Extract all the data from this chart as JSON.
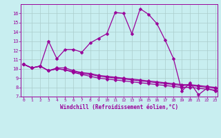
{
  "xlabel": "Windchill (Refroidissement éolien,°C)",
  "hours": [
    0,
    1,
    2,
    3,
    4,
    5,
    6,
    7,
    8,
    9,
    10,
    11,
    12,
    13,
    14,
    15,
    16,
    17,
    18,
    19,
    20,
    21,
    22,
    23
  ],
  "series1": [
    10.5,
    10.1,
    10.3,
    13.0,
    11.1,
    12.1,
    12.1,
    11.8,
    12.8,
    13.3,
    13.8,
    16.1,
    16.0,
    13.8,
    16.5,
    15.9,
    14.9,
    13.1,
    11.1,
    7.6,
    8.5,
    7.2,
    7.9,
    7.6
  ],
  "series2": [
    10.5,
    10.1,
    10.3,
    9.8,
    10.1,
    10.1,
    9.8,
    9.6,
    9.5,
    9.3,
    9.2,
    9.1,
    9.0,
    8.9,
    8.8,
    8.7,
    8.6,
    8.5,
    8.4,
    8.3,
    8.3,
    8.2,
    8.1,
    8.0
  ],
  "series3": [
    10.5,
    10.1,
    10.3,
    9.8,
    10.0,
    9.9,
    9.7,
    9.5,
    9.4,
    9.2,
    9.1,
    9.0,
    8.9,
    8.8,
    8.7,
    8.6,
    8.5,
    8.4,
    8.3,
    8.2,
    8.2,
    8.1,
    8.0,
    7.9
  ],
  "series4": [
    10.5,
    10.1,
    10.3,
    9.8,
    10.0,
    9.9,
    9.6,
    9.4,
    9.2,
    9.0,
    8.9,
    8.8,
    8.7,
    8.6,
    8.5,
    8.4,
    8.3,
    8.2,
    8.1,
    8.0,
    8.0,
    7.9,
    7.8,
    7.7
  ],
  "ylim": [
    7,
    17
  ],
  "yticks": [
    7,
    8,
    9,
    10,
    11,
    12,
    13,
    14,
    15,
    16
  ],
  "xlim": [
    0,
    23
  ],
  "color": "#990099",
  "bg_color": "#c8eef0",
  "grid_color": "#aacccc",
  "markersize": 2.5,
  "linewidth": 0.9
}
